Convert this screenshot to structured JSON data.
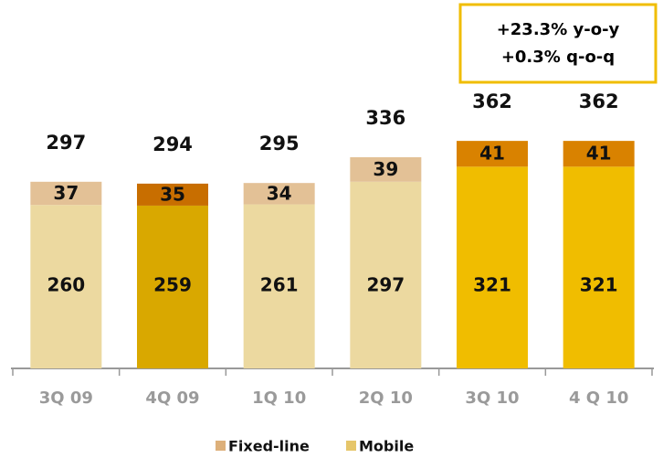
{
  "chart_data": {
    "type": "stacked_bar",
    "categories": [
      "3Q 09",
      "4Q 09",
      "1Q 10",
      "2Q 10",
      "3Q 10",
      "4 Q 10"
    ],
    "series": [
      {
        "name": "Mobile",
        "color": "#e6c66a",
        "colors": [
          "#ecd9a0",
          "#d9a800",
          "#ecd9a0",
          "#ecd9a0",
          "#f0bd00",
          "#f0bd00"
        ],
        "values": [
          260,
          259,
          261,
          297,
          321,
          321
        ]
      },
      {
        "name": "Fixed-line",
        "color": "#ddb07a",
        "colors": [
          "#e3c196",
          "#c86e00",
          "#e3c196",
          "#e3c196",
          "#d98200",
          "#d98200"
        ],
        "values": [
          37,
          35,
          34,
          39,
          41,
          41
        ]
      }
    ],
    "totals": [
      297,
      294,
      295,
      336,
      362,
      362
    ],
    "annotations": [
      "+23.3% y-o-y",
      "+0.3% q-o-q"
    ],
    "ylim": [
      0,
      400
    ],
    "legend": "bottom"
  }
}
